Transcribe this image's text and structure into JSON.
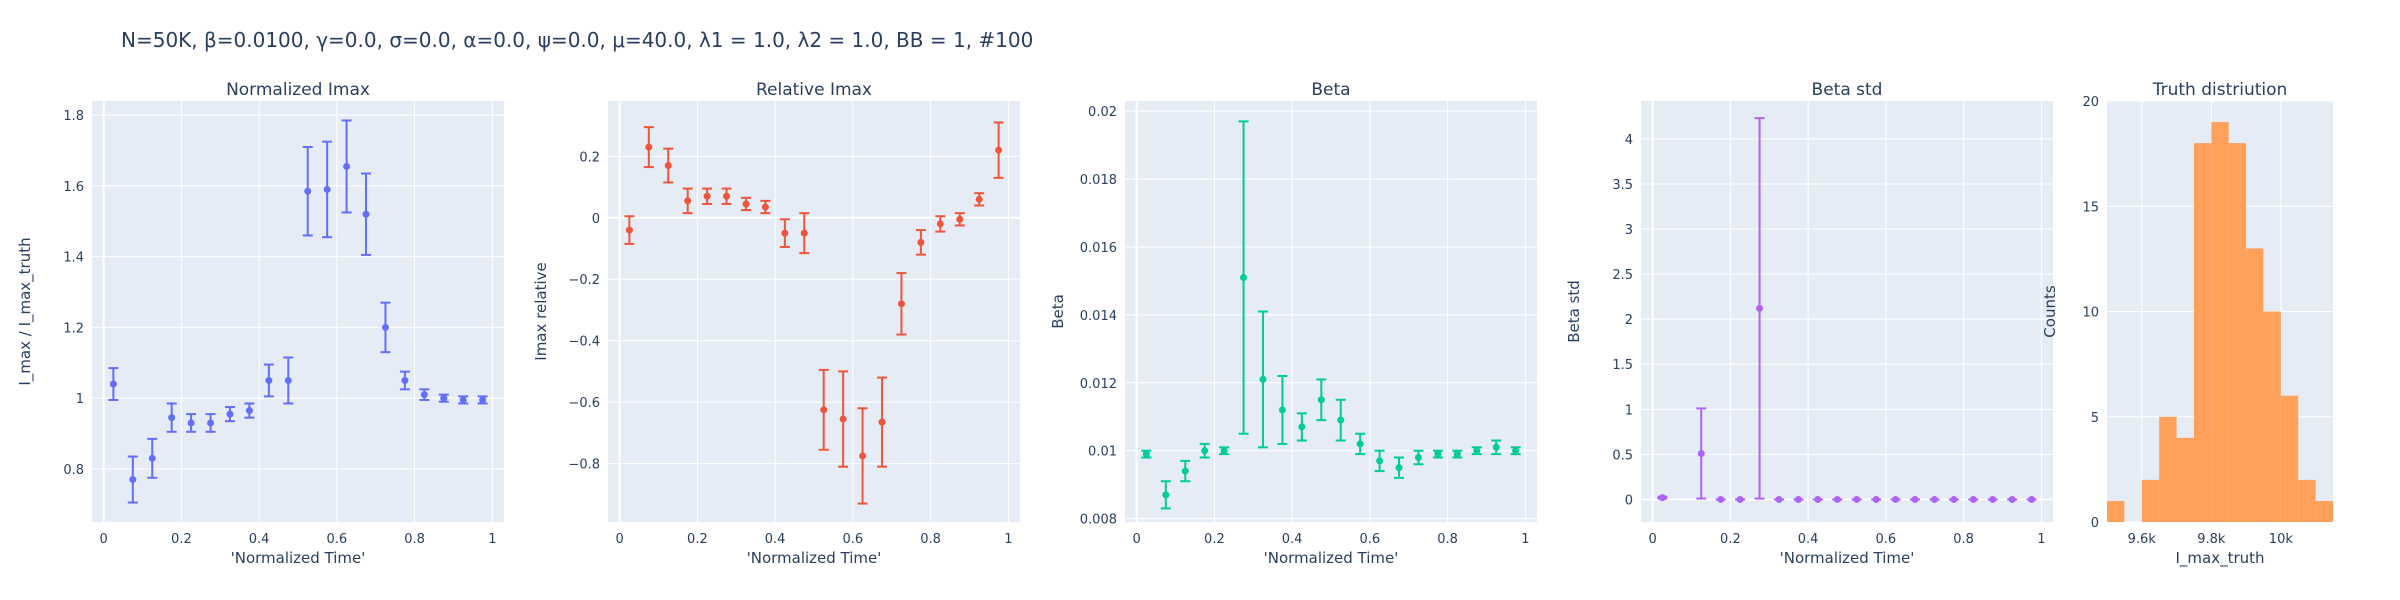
{
  "suptitle": "N=50K, β=0.0100, γ=0.0, σ=0.0,  α=0.0, ψ=0.0, μ=40.0, λ1 = 1.0, λ2 = 1.0, BB = 1, #100",
  "colors": {
    "plot_bg": "#e5ecf6",
    "grid": "#ffffff",
    "text": "#2a3f5f",
    "zero": "#ffffff"
  },
  "chart_data": [
    {
      "type": "scatter",
      "title": "Normalized Imax",
      "xlabel": "'Normalized Time'",
      "ylabel": "I_max / I_max_truth",
      "color": "#636efa",
      "xlim": [
        -0.03,
        1.03
      ],
      "ylim": [
        0.65,
        1.84
      ],
      "xticks": [
        0,
        0.2,
        0.4,
        0.6,
        0.8,
        1
      ],
      "xtick_labels": [
        "0",
        "0.2",
        "0.4",
        "0.6",
        "0.8",
        "1"
      ],
      "yticks": [
        0.8,
        1.0,
        1.2,
        1.4,
        1.6,
        1.8
      ],
      "ytick_labels": [
        "0.8",
        "1",
        "1.2",
        "1.4",
        "1.6",
        "1.8"
      ],
      "x": [
        0.025,
        0.075,
        0.125,
        0.175,
        0.225,
        0.275,
        0.325,
        0.375,
        0.425,
        0.475,
        0.525,
        0.575,
        0.625,
        0.675,
        0.725,
        0.775,
        0.825,
        0.875,
        0.925,
        0.975
      ],
      "y": [
        1.04,
        0.77,
        0.83,
        0.945,
        0.93,
        0.93,
        0.955,
        0.965,
        1.05,
        1.05,
        1.585,
        1.59,
        1.655,
        1.52,
        1.2,
        1.05,
        1.01,
        1.0,
        0.995,
        0.995
      ],
      "err": [
        0.045,
        0.065,
        0.055,
        0.04,
        0.025,
        0.025,
        0.02,
        0.02,
        0.045,
        0.065,
        0.125,
        0.135,
        0.13,
        0.115,
        0.07,
        0.025,
        0.015,
        0.01,
        0.01,
        0.01
      ]
    },
    {
      "type": "scatter",
      "title": "Relative Imax",
      "xlabel": "'Normalized Time'",
      "ylabel": "Imax relative",
      "color": "#ef553b",
      "xlim": [
        -0.03,
        1.03
      ],
      "ylim": [
        -0.99,
        0.38
      ],
      "xticks": [
        0,
        0.2,
        0.4,
        0.6,
        0.8,
        1
      ],
      "xtick_labels": [
        "0",
        "0.2",
        "0.4",
        "0.6",
        "0.8",
        "1"
      ],
      "yticks": [
        -0.8,
        -0.6,
        -0.4,
        -0.2,
        0,
        0.2
      ],
      "ytick_labels": [
        "−0.8",
        "−0.6",
        "−0.4",
        "−0.2",
        "0",
        "0.2"
      ],
      "x": [
        0.025,
        0.075,
        0.125,
        0.175,
        0.225,
        0.275,
        0.325,
        0.375,
        0.425,
        0.475,
        0.525,
        0.575,
        0.625,
        0.675,
        0.725,
        0.775,
        0.825,
        0.875,
        0.925,
        0.975
      ],
      "y": [
        -0.04,
        0.23,
        0.17,
        0.055,
        0.07,
        0.07,
        0.045,
        0.035,
        -0.05,
        -0.05,
        -0.625,
        -0.655,
        -0.775,
        -0.665,
        -0.28,
        -0.08,
        -0.02,
        -0.005,
        0.06,
        0.22
      ],
      "err": [
        0.045,
        0.065,
        0.055,
        0.04,
        0.025,
        0.025,
        0.02,
        0.02,
        0.045,
        0.065,
        0.13,
        0.155,
        0.155,
        0.145,
        0.1,
        0.04,
        0.025,
        0.02,
        0.02,
        0.09
      ]
    },
    {
      "type": "scatter",
      "title": "Beta",
      "xlabel": "'Normalized Time'",
      "ylabel": "Beta",
      "color": "#00cc96",
      "xlim": [
        -0.03,
        1.03
      ],
      "ylim": [
        0.0079,
        0.0203
      ],
      "xticks": [
        0,
        0.2,
        0.4,
        0.6,
        0.8,
        1
      ],
      "xtick_labels": [
        "0",
        "0.2",
        "0.4",
        "0.6",
        "0.8",
        "1"
      ],
      "yticks": [
        0.008,
        0.01,
        0.012,
        0.014,
        0.016,
        0.018,
        0.02
      ],
      "ytick_labels": [
        "0.008",
        "0.01",
        "0.012",
        "0.014",
        "0.016",
        "0.018",
        "0.02"
      ],
      "x": [
        0.025,
        0.075,
        0.125,
        0.175,
        0.225,
        0.275,
        0.325,
        0.375,
        0.425,
        0.475,
        0.525,
        0.575,
        0.625,
        0.675,
        0.725,
        0.775,
        0.825,
        0.875,
        0.925,
        0.975
      ],
      "y": [
        0.0099,
        0.0087,
        0.0094,
        0.01,
        0.01,
        0.0151,
        0.0121,
        0.0112,
        0.0107,
        0.0115,
        0.0109,
        0.0102,
        0.0097,
        0.0095,
        0.0098,
        0.0099,
        0.0099,
        0.01,
        0.0101,
        0.01
      ],
      "err": [
        0.0001,
        0.0004,
        0.0003,
        0.0002,
        0.0001,
        0.0046,
        0.002,
        0.001,
        0.0004,
        0.0006,
        0.0006,
        0.0003,
        0.0003,
        0.0003,
        0.0002,
        0.0001,
        0.0001,
        0.0001,
        0.0002,
        0.0001
      ]
    },
    {
      "type": "scatter",
      "title": "Beta std",
      "xlabel": "'Normalized Time'",
      "ylabel": "Beta std",
      "color": "#ab63fa",
      "xlim": [
        -0.03,
        1.03
      ],
      "ylim": [
        -0.25,
        4.42
      ],
      "xticks": [
        0,
        0.2,
        0.4,
        0.6,
        0.8,
        1
      ],
      "xtick_labels": [
        "0",
        "0.2",
        "0.4",
        "0.6",
        "0.8",
        "1"
      ],
      "yticks": [
        0,
        0.5,
        1,
        1.5,
        2,
        2.5,
        3,
        3.5,
        4
      ],
      "ytick_labels": [
        "0",
        "0.5",
        "1",
        "1.5",
        "2",
        "2.5",
        "3",
        "3.5",
        "4"
      ],
      "x": [
        0.025,
        0.125,
        0.175,
        0.225,
        0.275,
        0.325,
        0.375,
        0.425,
        0.475,
        0.525,
        0.575,
        0.625,
        0.675,
        0.725,
        0.775,
        0.825,
        0.875,
        0.925,
        0.975
      ],
      "y": [
        0.02,
        0.51,
        0.0,
        0.0,
        2.12,
        0.0,
        0.0,
        0.0,
        0.0,
        0.0,
        0.0,
        0.0,
        0.0,
        0.0,
        0.0,
        0.0,
        0.0,
        0.0,
        0.0
      ],
      "err": [
        0.01,
        0.5,
        0.0,
        0.0,
        2.11,
        0.0,
        0.0,
        0.0,
        0.0,
        0.0,
        0.0,
        0.0,
        0.0,
        0.0,
        0.0,
        0.0,
        0.0,
        0.0,
        0.0
      ]
    },
    {
      "type": "histogram",
      "title": "Truth distriution",
      "xlabel": "I_max_truth",
      "ylabel": "Counts",
      "color": "#ffa15a",
      "xlim": [
        9500,
        10150
      ],
      "ylim": [
        0,
        20
      ],
      "xticks": [
        9600,
        9800,
        10000
      ],
      "xtick_labels": [
        "9.6k",
        "9.8k",
        "10k"
      ],
      "yticks": [
        0,
        5,
        10,
        15,
        20
      ],
      "ytick_labels": [
        "0",
        "5",
        "10",
        "15",
        "20"
      ],
      "bin_edges": [
        9500,
        9550,
        9600,
        9650,
        9700,
        9750,
        9800,
        9850,
        9900,
        9950,
        10000,
        10050,
        10100,
        10150
      ],
      "counts": [
        1,
        0,
        2,
        5,
        4,
        18,
        19,
        18,
        13,
        10,
        6,
        2,
        1
      ]
    }
  ]
}
